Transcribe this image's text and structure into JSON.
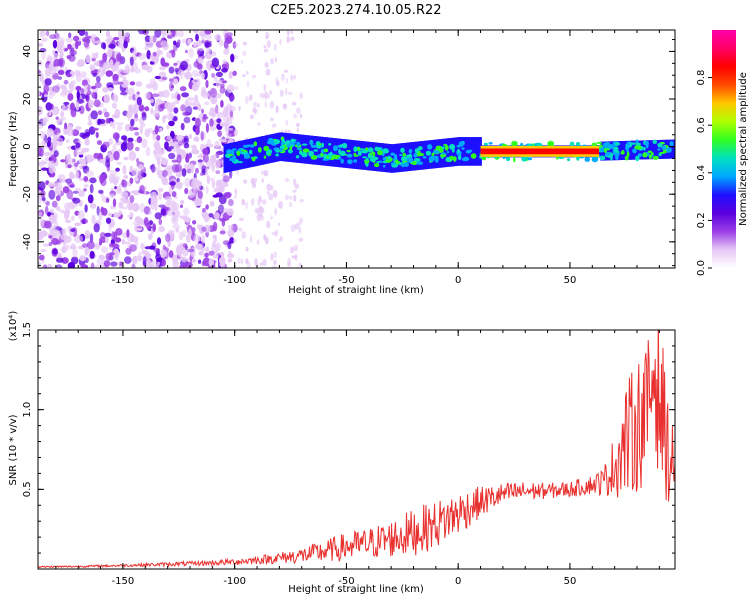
{
  "figure_title": "C2E5.2023.274.10.05.R22",
  "colors": {
    "snr_line": "#e8302e",
    "spectrum_ramp": [
      "#ffffff",
      "#e6c8f6",
      "#9b3fe6",
      "#5a00e0",
      "#1d10ff",
      "#00a8ff",
      "#00e0c0",
      "#30ff20",
      "#b0ff00",
      "#ffc800",
      "#ff4a00",
      "#ff0000",
      "#ff0066",
      "#ff00aa"
    ]
  },
  "chart_data": [
    {
      "type": "heatmap",
      "title": "",
      "xlabel": "Height of straight line (km)",
      "ylabel": "Frequency (Hz)",
      "xlim": [
        -188,
        97
      ],
      "ylim": [
        -51,
        49
      ],
      "x_ticks": [
        -150,
        -100,
        -50,
        0,
        50
      ],
      "x_tick_labels": [
        "-150",
        "-100",
        "-50",
        "0",
        "50"
      ],
      "y_ticks": [
        -40,
        -20,
        0,
        20,
        40
      ],
      "y_tick_labels": [
        "-40",
        "-20",
        "0",
        "20",
        "40"
      ],
      "grid": false,
      "description_features": {
        "noise_region_x": [
          -188,
          -100
        ],
        "sparse_noise_x": [
          -100,
          -70
        ],
        "signal_band": [
          {
            "x": -105,
            "freq": -5
          },
          {
            "x": -80,
            "freq": 0
          },
          {
            "x": -50,
            "freq": -3
          },
          {
            "x": -30,
            "freq": -5
          },
          {
            "x": -10,
            "freq": -3
          },
          {
            "x": 0,
            "freq": -2
          },
          {
            "x": 10,
            "freq": -2
          },
          {
            "x": 60,
            "freq": -2
          },
          {
            "x": 97,
            "freq": -1
          }
        ],
        "saturated_band_x": [
          10,
          63
        ]
      },
      "colorbar": {
        "label": "Normalized spectral amplitude",
        "range": [
          0,
          1
        ],
        "ticks": [
          0.0,
          0.2,
          0.4,
          0.6,
          0.8
        ],
        "tick_labels": [
          "0.0",
          "0.2",
          "0.4",
          "0.6",
          "0.8"
        ]
      }
    },
    {
      "type": "line",
      "title": "",
      "xlabel": "Height of straight line (km)",
      "ylabel": "SNR (10 * v/v)",
      "y_multiplier": "(x10⁴)",
      "xlim": [
        -188,
        97
      ],
      "ylim": [
        0,
        15000
      ],
      "x_ticks": [
        -150,
        -100,
        -50,
        0,
        50
      ],
      "x_tick_labels": [
        "-150",
        "-100",
        "-50",
        "0",
        "50"
      ],
      "y_ticks": [
        5000,
        10000,
        15000
      ],
      "y_tick_labels": [
        "0.5",
        "1.0",
        "1.5"
      ],
      "grid": false,
      "series": [
        {
          "x": [
            -188,
            -170,
            -150,
            -130,
            -110,
            -100,
            -90,
            -80,
            -70,
            -60,
            -50,
            -40,
            -30,
            -20,
            -10,
            0,
            10,
            20,
            30,
            40,
            50,
            60,
            65,
            70,
            75,
            80,
            85,
            88,
            92,
            95,
            97
          ],
          "y": [
            130,
            160,
            220,
            300,
            380,
            450,
            560,
            700,
            850,
            1100,
            1400,
            1600,
            1900,
            2300,
            2800,
            3500,
            4200,
            4700,
            4900,
            4900,
            5000,
            5300,
            5500,
            6500,
            8000,
            9000,
            10000,
            13000,
            9000,
            6500,
            7000
          ],
          "amplitude": [
            50,
            60,
            80,
            120,
            160,
            200,
            260,
            360,
            500,
            700,
            900,
            1000,
            1200,
            1500,
            1500,
            1400,
            1000,
            700,
            600,
            500,
            500,
            600,
            900,
            2000,
            3600,
            4200,
            4500,
            6000,
            4500,
            2500,
            2000
          ]
        }
      ]
    }
  ]
}
